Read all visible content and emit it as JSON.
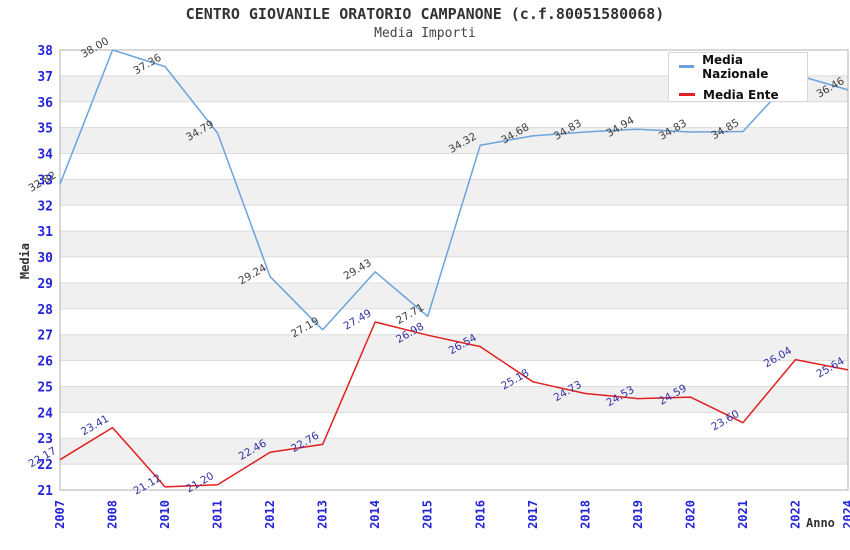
{
  "chart_data": {
    "type": "line",
    "title": "CENTRO GIOVANILE ORATORIO CAMPANONE (c.f.80051580068)",
    "subtitle": "Media Importi",
    "xlabel": "Anno",
    "ylabel": "Media",
    "ylim": [
      21,
      38
    ],
    "y_tick_step": 1,
    "grid": true,
    "legend_position": "top-right",
    "x": [
      "2007",
      "2008",
      "2010",
      "2011",
      "2012",
      "2013",
      "2014",
      "2015",
      "2016",
      "2017",
      "2018",
      "2019",
      "2020",
      "2021",
      "2022",
      "2024"
    ],
    "series": [
      {
        "name": "Media Nazionale",
        "color": "#6ba3dc",
        "label_color": "#3d3d3d",
        "values": [
          32.82,
          38.0,
          37.36,
          34.79,
          29.24,
          27.19,
          29.43,
          27.71,
          34.32,
          34.68,
          34.83,
          34.94,
          34.83,
          34.85,
          37.05,
          36.46
        ]
      },
      {
        "name": "Media Ente",
        "color": "#e02020",
        "label_color": "#3131a6",
        "values": [
          22.17,
          23.41,
          21.12,
          21.2,
          22.46,
          22.76,
          27.49,
          26.98,
          26.54,
          25.18,
          24.73,
          24.53,
          24.59,
          23.6,
          26.04,
          25.64
        ]
      }
    ],
    "colors": {
      "tick": "#2424d8",
      "stripe": "#f0f0f0",
      "grid": "#dcdcdc",
      "frame": "#b0b0b0",
      "title": "#333333",
      "subtitle": "#444444"
    }
  }
}
